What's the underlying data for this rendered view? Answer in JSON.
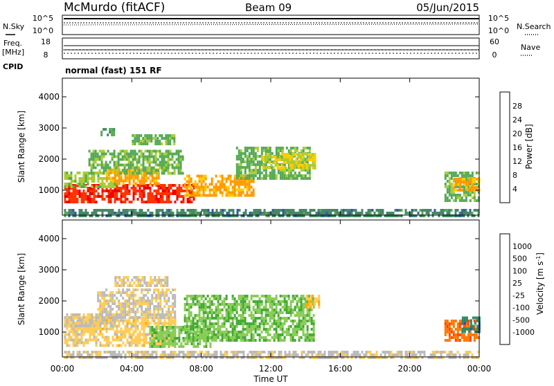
{
  "header": {
    "title": "McMurdo (fitACF)",
    "beam": "Beam 09",
    "date": "05/Jun/2015"
  },
  "top_panels": {
    "nsky_label": "N.Sky",
    "nsky_ticks": [
      "10^5",
      "10^0"
    ],
    "nsearch_label": "N.Search",
    "nsearch_ticks": [
      "10^5",
      "10^0"
    ],
    "freq_label": "Freq.",
    "freq_unit": "[MHz]",
    "freq_ticks": [
      "18",
      "8"
    ],
    "nave_label": "Nave",
    "nave_ticks": [
      "60",
      "0"
    ],
    "cpid_label": "CPID",
    "cpid_text": "normal (fast) 151 RF"
  },
  "colors": {
    "power": [
      "#0000ff",
      "#3355bb",
      "#448866",
      "#55aa55",
      "#aacc33",
      "#ffcc00",
      "#ff9900",
      "#ff6600",
      "#ff3300",
      "#ee0000"
    ],
    "velocity": [
      "#ee0000",
      "#ff4400",
      "#ff7700",
      "#ffaa00",
      "#ffcc55",
      "#bbbbbb",
      "#88cc55",
      "#44aa33",
      "#338866",
      "#2255aa",
      "#0000cc"
    ]
  },
  "chart_data": [
    {
      "type": "heatmap",
      "name": "power",
      "ylabel": "Slant Range [km]",
      "yticks": [
        1000,
        2000,
        3000,
        4000
      ],
      "ylim": [
        200,
        4600
      ],
      "xlim_hours": [
        0,
        24
      ],
      "colorbar_label": "Power [dB]",
      "colorbar_ticks": [
        4,
        8,
        12,
        16,
        20,
        24,
        28
      ],
      "color_range": [
        0,
        32
      ],
      "regions": [
        {
          "t0": 0.1,
          "t1": 7.6,
          "r0": 600,
          "r1": 1200,
          "value": 28
        },
        {
          "t0": 0.1,
          "t1": 3.0,
          "r0": 1100,
          "r1": 1600,
          "value": 14
        },
        {
          "t0": 2.5,
          "t1": 5.5,
          "r0": 1200,
          "r1": 1700,
          "value": 20
        },
        {
          "t0": 1.5,
          "t1": 7.0,
          "r0": 1500,
          "r1": 2300,
          "value": 12
        },
        {
          "t0": 7.0,
          "t1": 11.0,
          "r0": 800,
          "r1": 1500,
          "value": 20
        },
        {
          "t0": 10.0,
          "t1": 14.2,
          "r0": 1400,
          "r1": 2400,
          "value": 12
        },
        {
          "t0": 11.5,
          "t1": 14.5,
          "r0": 1700,
          "r1": 2200,
          "value": 16
        },
        {
          "t0": 4.0,
          "t1": 6.5,
          "r0": 2500,
          "r1": 2800,
          "value": 12
        },
        {
          "t0": 2.2,
          "t1": 3.0,
          "r0": 2800,
          "r1": 3000,
          "value": 10
        },
        {
          "t0": 0.1,
          "t1": 24.0,
          "r0": 200,
          "r1": 400,
          "value": 8
        },
        {
          "t0": 22.0,
          "t1": 24.0,
          "r0": 700,
          "r1": 1600,
          "value": 12
        },
        {
          "t0": 22.5,
          "t1": 24.0,
          "r0": 1000,
          "r1": 1400,
          "value": 20
        }
      ]
    },
    {
      "type": "heatmap",
      "name": "velocity",
      "ylabel": "Slant Range [km]",
      "yticks": [
        1000,
        2000,
        3000,
        4000
      ],
      "ylim": [
        200,
        4600
      ],
      "xlabel": "Time UT",
      "xticks": [
        "00:00",
        "04:00",
        "08:00",
        "12:00",
        "16:00",
        "20:00",
        "00:00"
      ],
      "xlim_hours": [
        0,
        24
      ],
      "colorbar_label": "Velocity [m s",
      "colorbar_label_sup": "-1",
      "colorbar_label_end": "]",
      "colorbar_ticks": [
        "1000",
        "500",
        "100",
        "25",
        "-25",
        "-100",
        "-500",
        "-1000"
      ],
      "color_range": [
        -1200,
        1200
      ],
      "regions": [
        {
          "t0": 0.1,
          "t1": 6.5,
          "r0": 600,
          "r1": 1500,
          "value": -200
        },
        {
          "t0": 0.1,
          "t1": 3.0,
          "r0": 1200,
          "r1": 1600,
          "value": -60
        },
        {
          "t0": 5.0,
          "t1": 8.5,
          "r0": 500,
          "r1": 1200,
          "value": 250
        },
        {
          "t0": 7.0,
          "t1": 14.5,
          "r0": 700,
          "r1": 2200,
          "value": 300
        },
        {
          "t0": 2.0,
          "t1": 6.5,
          "r0": 1500,
          "r1": 2400,
          "value": -80
        },
        {
          "t0": 3.0,
          "t1": 6.0,
          "r0": 2500,
          "r1": 2800,
          "value": -120
        },
        {
          "t0": 14.0,
          "t1": 14.8,
          "r0": 1800,
          "r1": 2200,
          "value": -300
        },
        {
          "t0": 0.1,
          "t1": 24.0,
          "r0": 200,
          "r1": 400,
          "value": -60
        },
        {
          "t0": 22.0,
          "t1": 24.0,
          "r0": 700,
          "r1": 1400,
          "value": -700
        },
        {
          "t0": 23.0,
          "t1": 24.0,
          "r0": 1000,
          "r1": 1500,
          "value": 700
        }
      ]
    }
  ]
}
